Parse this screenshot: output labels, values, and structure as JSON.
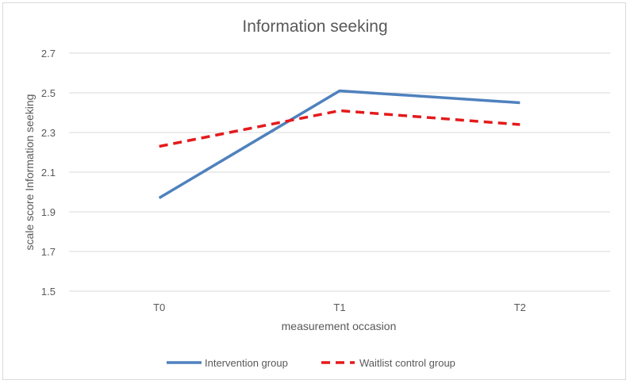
{
  "chart_data": {
    "type": "line",
    "title": "Information seeking",
    "xlabel": "measurement occasion",
    "ylabel": "scale score Information seeking",
    "categories": [
      "T0",
      "T1",
      "T2"
    ],
    "ylim": [
      1.5,
      2.7
    ],
    "yticks": [
      "2.7",
      "2.5",
      "2.3",
      "2.1",
      "1.9",
      "1.7",
      "1.5"
    ],
    "ytick_values": [
      2.7,
      2.5,
      2.3,
      2.1,
      1.9,
      1.7,
      1.5
    ],
    "grid": true,
    "legend_position": "bottom",
    "series": [
      {
        "name": "Intervention group",
        "values": [
          1.97,
          2.51,
          2.45
        ],
        "color": "#4f81bd",
        "style": "solid"
      },
      {
        "name": "Waitlist control group",
        "values": [
          2.23,
          2.41,
          2.34
        ],
        "color": "#e41a1c",
        "style": "dashed"
      }
    ]
  }
}
